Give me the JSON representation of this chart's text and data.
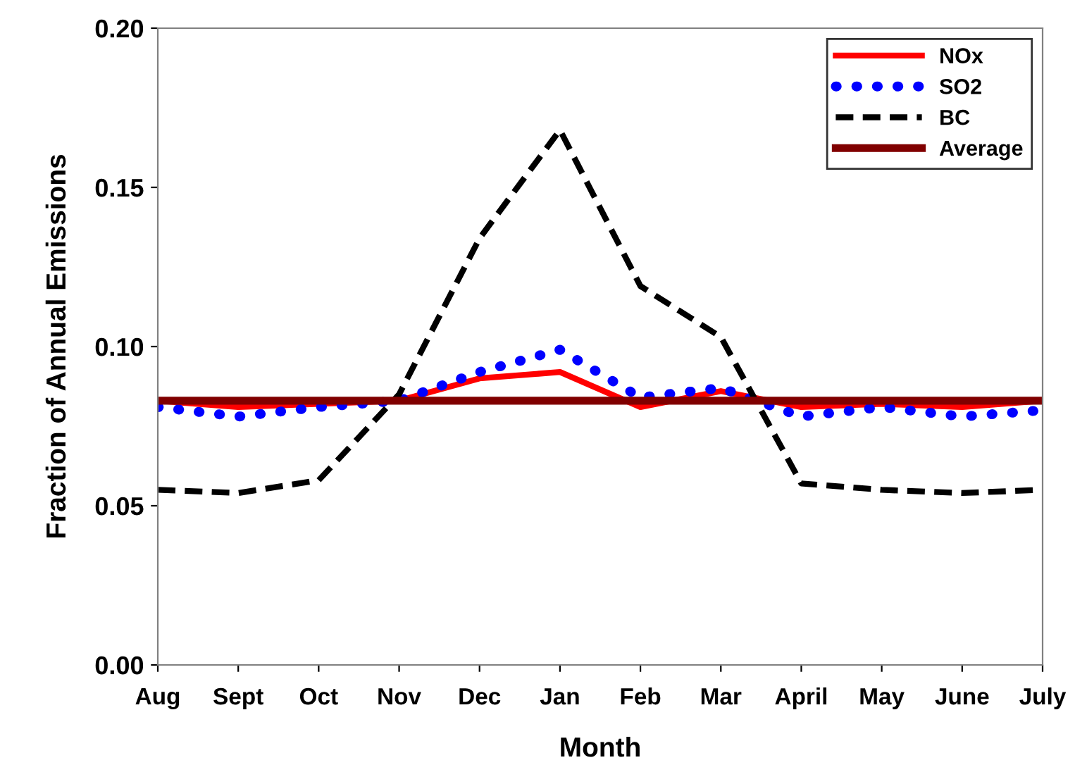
{
  "chart_data": {
    "type": "line",
    "xlabel": "Month",
    "ylabel": "Fraction of Annual Emissions",
    "categories": [
      "Aug",
      "Sept",
      "Oct",
      "Nov",
      "Dec",
      "Jan",
      "Feb",
      "Mar",
      "April",
      "May",
      "June",
      "July"
    ],
    "series": [
      {
        "name": "NOx",
        "color": "#ff0000",
        "line_style": "solid",
        "values": [
          0.083,
          0.081,
          0.082,
          0.083,
          0.09,
          0.092,
          0.081,
          0.086,
          0.081,
          0.082,
          0.081,
          0.083
        ]
      },
      {
        "name": "SO2",
        "color": "#0000ff",
        "line_style": "dotted",
        "values": [
          0.081,
          0.078,
          0.081,
          0.083,
          0.092,
          0.099,
          0.084,
          0.087,
          0.078,
          0.081,
          0.078,
          0.08
        ]
      },
      {
        "name": "BC",
        "color": "#000000",
        "line_style": "dashed",
        "values": [
          0.055,
          0.054,
          0.058,
          0.085,
          0.134,
          0.168,
          0.119,
          0.103,
          0.057,
          0.055,
          0.054,
          0.055
        ]
      },
      {
        "name": "Average",
        "color": "#800000",
        "line_style": "solid",
        "values": [
          0.083,
          0.083,
          0.083,
          0.083,
          0.083,
          0.083,
          0.083,
          0.083,
          0.083,
          0.083,
          0.083,
          0.083
        ]
      }
    ],
    "ylim": [
      0,
      0.2
    ],
    "yticks": [
      {
        "value": 0,
        "label": "0.00"
      },
      {
        "value": 0.05,
        "label": "0.05"
      },
      {
        "value": 0.1,
        "label": "0.10"
      },
      {
        "value": 0.15,
        "label": "0.15"
      },
      {
        "value": 0.2,
        "label": "0.20"
      }
    ],
    "grid": false,
    "legend": "top right"
  }
}
